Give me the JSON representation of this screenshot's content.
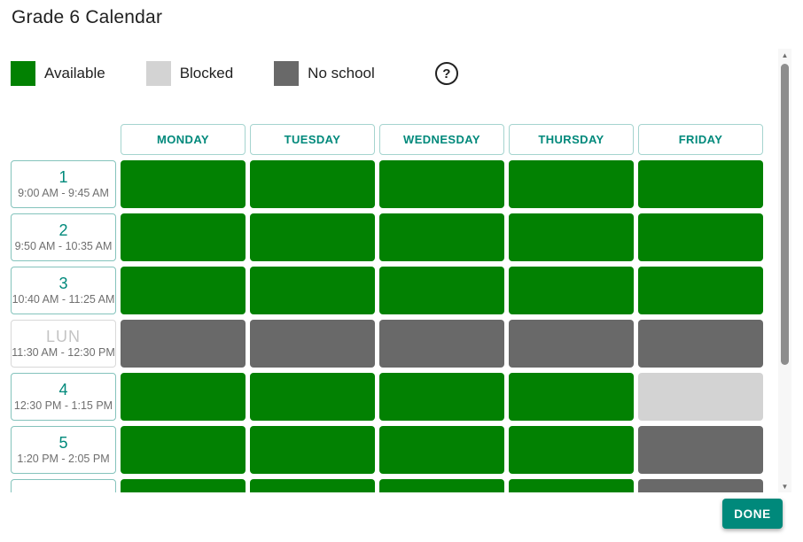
{
  "title": "Grade 6 Calendar",
  "legend": {
    "items": [
      {
        "label": "Available",
        "state": "available"
      },
      {
        "label": "Blocked",
        "state": "blocked"
      },
      {
        "label": "No school",
        "state": "no_school"
      }
    ],
    "help_glyph": "?"
  },
  "colors": {
    "available": "#028102",
    "blocked": "#d3d3d3",
    "no_school": "#696969",
    "accent_teal": "#00897b"
  },
  "grid": {
    "day_headers": [
      "MONDAY",
      "TUESDAY",
      "WEDNESDAY",
      "THURSDAY",
      "FRIDAY"
    ],
    "periods": [
      {
        "label": "1",
        "time": "9:00 AM - 9:45 AM",
        "cells": [
          "available",
          "available",
          "available",
          "available",
          "available"
        ]
      },
      {
        "label": "2",
        "time": "9:50 AM - 10:35 AM",
        "cells": [
          "available",
          "available",
          "available",
          "available",
          "available"
        ]
      },
      {
        "label": "3",
        "time": "10:40 AM - 11:25 AM",
        "cells": [
          "available",
          "available",
          "available",
          "available",
          "available"
        ]
      },
      {
        "label": "LUN",
        "time": "11:30 AM - 12:30 PM",
        "muted": true,
        "cells": [
          "no_school",
          "no_school",
          "no_school",
          "no_school",
          "no_school"
        ]
      },
      {
        "label": "4",
        "time": "12:30 PM - 1:15 PM",
        "cells": [
          "available",
          "available",
          "available",
          "available",
          "blocked"
        ]
      },
      {
        "label": "5",
        "time": "1:20 PM - 2:05 PM",
        "cells": [
          "available",
          "available",
          "available",
          "available",
          "no_school"
        ]
      },
      {
        "label": "",
        "time": "",
        "partial": true,
        "cells": [
          "available",
          "available",
          "available",
          "available",
          "no_school"
        ]
      }
    ]
  },
  "footer": {
    "done_label": "DONE"
  },
  "scrollbar": {
    "up_glyph": "▲",
    "down_glyph": "▼"
  }
}
